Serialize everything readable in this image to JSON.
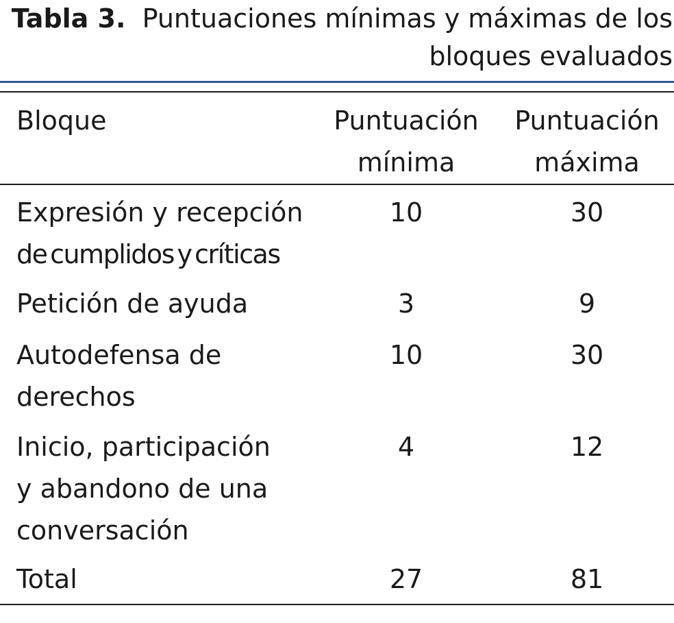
{
  "caption": {
    "label": "Tabla 3.",
    "title_line1": "Puntuaciones mínimas y máximas de los",
    "title_line2": "bloques evaluados"
  },
  "table": {
    "headers": {
      "block": "Bloque",
      "min_line1": "Puntuación",
      "min_line2": "mínima",
      "max_line1": "Puntuación",
      "max_line2": "máxima"
    },
    "rows": [
      {
        "block_lines": [
          "Expresión y recepción",
          "de cumplidos y críticas"
        ],
        "min": "10",
        "max": "30"
      },
      {
        "block_lines": [
          "Petición de ayuda"
        ],
        "min": "3",
        "max": "9"
      },
      {
        "block_lines": [
          "Autodefensa de",
          "derechos"
        ],
        "min": "10",
        "max": "30"
      },
      {
        "block_lines": [
          "Inicio, participación",
          "y abandono de una",
          "conversación"
        ],
        "min": "4",
        "max": "12"
      },
      {
        "block_lines": [
          "Total"
        ],
        "min": "27",
        "max": "81"
      }
    ]
  }
}
